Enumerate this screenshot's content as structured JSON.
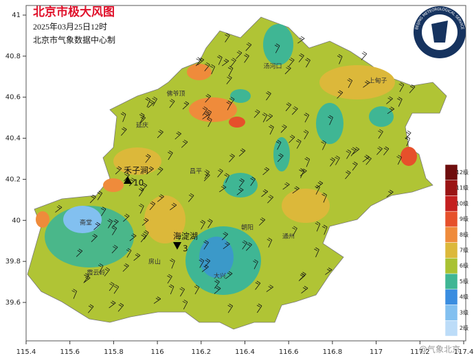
{
  "header": {
    "title": "北京市极大风图",
    "time": "2025年03月25日12时",
    "credit": "北京市气象数据中心制"
  },
  "logo": {
    "text": "BEIJING METEOROLOGICAL SERVICE"
  },
  "axes": {
    "lon_ticks": [
      115.4,
      115.6,
      115.8,
      116,
      116.2,
      116.4,
      116.6,
      116.8,
      117,
      117.2,
      117.4
    ],
    "lat_ticks": [
      41,
      40.8,
      40.6,
      40.4,
      40.2,
      40,
      39.8,
      39.6
    ]
  },
  "legend": [
    {
      "label": "12级",
      "color": "#6e0d0d"
    },
    {
      "label": "11级",
      "color": "#9a1414"
    },
    {
      "label": "10级",
      "color": "#c41f1f"
    },
    {
      "label": "9级",
      "color": "#e6502b"
    },
    {
      "label": "8级",
      "color": "#ef8b3b"
    },
    {
      "label": "7级",
      "color": "#dcb83a"
    },
    {
      "label": "6级",
      "color": "#a9c232"
    },
    {
      "label": "5级",
      "color": "#3fb694"
    },
    {
      "label": "4级",
      "color": "#3a8de0"
    },
    {
      "label": "3级",
      "color": "#82c0f0"
    },
    {
      "label": "2级",
      "color": "#bcdcf8"
    }
  ],
  "stations": [
    {
      "name": "禾子涧",
      "value": "10"
    },
    {
      "name": "海淀湖",
      "value": "3"
    }
  ],
  "places": [
    "汤河口",
    "上甸子",
    "佛爷顶",
    "延庆",
    "霞云岭",
    "斋堂",
    "大兴",
    "昌平",
    "朝阳",
    "房山",
    "通州"
  ],
  "watermark": "@气象北京"
}
